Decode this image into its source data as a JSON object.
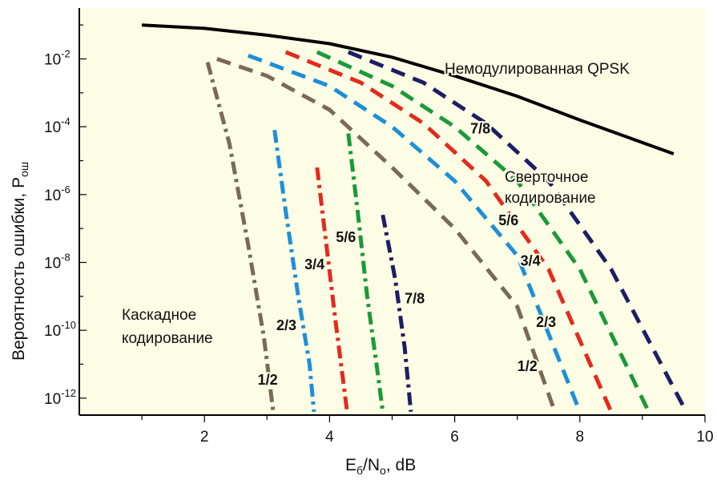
{
  "chart_data": {
    "type": "line",
    "xlabel": "E",
    "xlabel_sub1": "б",
    "xlabel_mid": "/N",
    "xlabel_sub2": "o",
    "xlabel_tail": ", dB",
    "ylabel": "Вероятность ошибки, P",
    "ylabel_sub": "ош",
    "xlim": [
      0,
      10
    ],
    "ylim_exp": [
      -12.5,
      -0.5
    ],
    "y_scale": "log",
    "x_tick_labels": [
      "2",
      "4",
      "6",
      "8",
      "10"
    ],
    "x_tick_values": [
      2,
      4,
      6,
      8,
      10
    ],
    "x_minor_ticks": [
      1,
      3,
      5,
      7,
      9
    ],
    "y_tick_base": "10",
    "y_tick_exponents": [
      "-2",
      "-4",
      "-6",
      "-8",
      "-10",
      "-12"
    ],
    "y_tick_values": [
      -2,
      -4,
      -6,
      -8,
      -10,
      -12
    ],
    "annotations": {
      "uncoded": "Немодулированная QPSK",
      "conv_line1": "Сверточное",
      "conv_line2": "кодирование",
      "casc_line1": "Каскадное",
      "casc_line2": "кодирование"
    },
    "colors": {
      "rate_1_2": "#7a6a55",
      "rate_2_3": "#1e8fd6",
      "rate_3_4": "#e32a1c",
      "rate_5_6": "#1a9a3a",
      "rate_7_8": "#1e1e66",
      "uncoded": "#000000"
    },
    "series": [
      {
        "name": "Немодулированная QPSK",
        "style": "solid",
        "color": "uncoded",
        "points": [
          [
            1.0,
            -1.0
          ],
          [
            2.0,
            -1.1
          ],
          [
            3.0,
            -1.3
          ],
          [
            4.0,
            -1.55
          ],
          [
            5.0,
            -1.95
          ],
          [
            6.0,
            -2.5
          ],
          [
            7.0,
            -3.1
          ],
          [
            8.0,
            -3.8
          ],
          [
            9.5,
            -4.8
          ]
        ]
      },
      {
        "name": "1/2",
        "style": "dash",
        "color": "rate_1_2",
        "points": [
          [
            2.2,
            -2.0
          ],
          [
            3.0,
            -2.5
          ],
          [
            4.0,
            -3.5
          ],
          [
            5.0,
            -5.2
          ],
          [
            6.0,
            -7.0
          ],
          [
            7.0,
            -9.3
          ],
          [
            7.6,
            -12.4
          ]
        ]
      },
      {
        "name": "2/3",
        "style": "dash",
        "color": "rate_2_3",
        "points": [
          [
            2.7,
            -1.9
          ],
          [
            4.0,
            -2.8
          ],
          [
            5.0,
            -4.0
          ],
          [
            6.0,
            -5.6
          ],
          [
            7.0,
            -7.8
          ],
          [
            8.0,
            -12.4
          ]
        ]
      },
      {
        "name": "3/4",
        "style": "dash",
        "color": "rate_3_4",
        "points": [
          [
            3.3,
            -1.8
          ],
          [
            4.5,
            -2.7
          ],
          [
            5.5,
            -3.9
          ],
          [
            6.5,
            -5.6
          ],
          [
            7.5,
            -8.2
          ],
          [
            8.5,
            -12.4
          ]
        ]
      },
      {
        "name": "5/6",
        "style": "dash",
        "color": "rate_5_6",
        "points": [
          [
            3.8,
            -1.8
          ],
          [
            5.0,
            -2.8
          ],
          [
            6.0,
            -4.0
          ],
          [
            7.0,
            -5.6
          ],
          [
            8.0,
            -8.2
          ],
          [
            9.1,
            -12.4
          ]
        ]
      },
      {
        "name": "7/8",
        "style": "dash",
        "color": "rate_7_8",
        "points": [
          [
            4.3,
            -1.8
          ],
          [
            5.5,
            -2.7
          ],
          [
            6.5,
            -3.9
          ],
          [
            7.5,
            -5.6
          ],
          [
            8.5,
            -8.2
          ],
          [
            9.7,
            -12.4
          ]
        ]
      },
      {
        "name": "1/2",
        "style": "dashdot",
        "color": "rate_1_2",
        "points": [
          [
            2.05,
            -2.1
          ],
          [
            2.4,
            -4.5
          ],
          [
            2.7,
            -7.5
          ],
          [
            2.95,
            -10.2
          ],
          [
            3.1,
            -12.4
          ]
        ]
      },
      {
        "name": "2/3",
        "style": "dashdot",
        "color": "rate_2_3",
        "points": [
          [
            3.12,
            -4.1
          ],
          [
            3.3,
            -6.5
          ],
          [
            3.5,
            -9.0
          ],
          [
            3.68,
            -11.0
          ],
          [
            3.75,
            -12.4
          ]
        ]
      },
      {
        "name": "3/4",
        "style": "dashdot",
        "color": "rate_3_4",
        "points": [
          [
            3.8,
            -5.2
          ],
          [
            3.95,
            -7.5
          ],
          [
            4.1,
            -9.8
          ],
          [
            4.28,
            -12.4
          ]
        ]
      },
      {
        "name": "5/6",
        "style": "dashdot",
        "color": "rate_5_6",
        "points": [
          [
            4.3,
            -4.2
          ],
          [
            4.45,
            -6.5
          ],
          [
            4.6,
            -9.0
          ],
          [
            4.75,
            -11.0
          ],
          [
            4.85,
            -12.4
          ]
        ]
      },
      {
        "name": "7/8",
        "style": "dashdot",
        "color": "rate_7_8",
        "points": [
          [
            4.85,
            -6.6
          ],
          [
            5.05,
            -8.5
          ],
          [
            5.2,
            -10.5
          ],
          [
            5.3,
            -12.4
          ]
        ]
      }
    ],
    "rate_labels": [
      {
        "text": "1/2",
        "x": 2.85,
        "y": -11.6
      },
      {
        "text": "2/3",
        "x": 3.15,
        "y": -10.0
      },
      {
        "text": "3/4",
        "x": 3.6,
        "y": -8.2
      },
      {
        "text": "5/6",
        "x": 4.1,
        "y": -7.4
      },
      {
        "text": "7/8",
        "x": 5.2,
        "y": -9.2
      },
      {
        "text": "1/2",
        "x": 7.0,
        "y": -11.2
      },
      {
        "text": "2/3",
        "x": 7.3,
        "y": -9.9
      },
      {
        "text": "3/4",
        "x": 7.05,
        "y": -8.1
      },
      {
        "text": "5/6",
        "x": 6.7,
        "y": -6.9
      },
      {
        "text": "7/8",
        "x": 6.25,
        "y": -4.2
      }
    ]
  }
}
